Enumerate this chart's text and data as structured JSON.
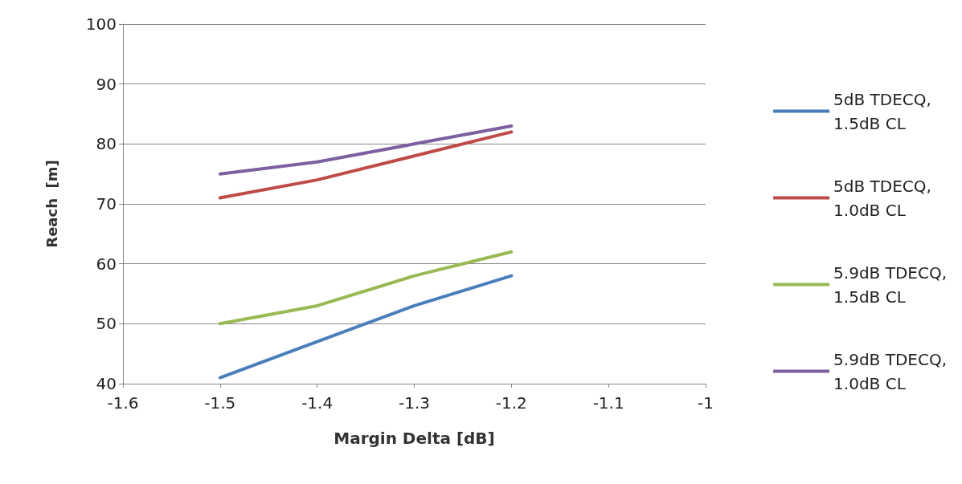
{
  "chart_data": {
    "type": "line",
    "xlabel": "Margin Delta [dB]",
    "ylabel": "Reach  [m]",
    "x": [
      -1.5,
      -1.4,
      -1.3,
      -1.2
    ],
    "series": [
      {
        "name": "5dB TDECQ, 1.5dB CL",
        "color": "#4a7ebb",
        "values": [
          41,
          47,
          53,
          58
        ]
      },
      {
        "name": "5dB TDECQ, 1.0dB CL",
        "color": "#be4b48",
        "values": [
          71,
          74,
          78,
          82
        ]
      },
      {
        "name": "5.9dB TDECQ, 1.5dB CL",
        "color": "#98b954",
        "values": [
          50,
          53,
          58,
          62
        ]
      },
      {
        "name": "5.9dB TDECQ, 1.0dB CL",
        "color": "#7d60a0",
        "values": [
          75,
          77,
          80,
          83
        ]
      }
    ],
    "xlim": [
      -1.6,
      -1
    ],
    "xticks": [
      -1.6,
      -1.5,
      -1.4,
      -1.3,
      -1.2,
      -1.1,
      -1
    ],
    "ylim": [
      40,
      100
    ],
    "yticks": [
      40,
      50,
      60,
      70,
      80,
      90,
      100
    ],
    "grid": "y",
    "legend": "right",
    "marker": "none",
    "line_style": "solid"
  }
}
